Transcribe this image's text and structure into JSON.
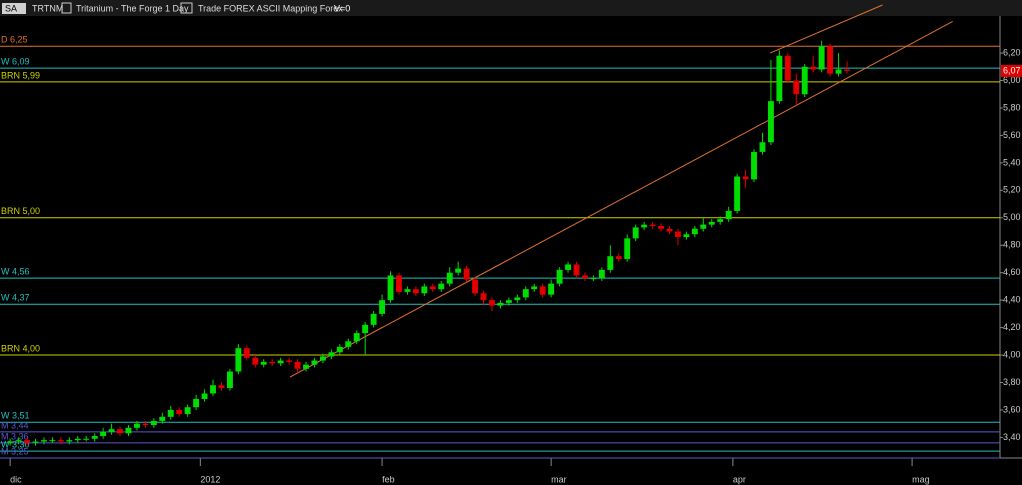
{
  "header": {
    "symbol_button": "SA",
    "symbol": "TRTNM",
    "description": "Tritanium - The Forge  1 Day",
    "source": "Trade FOREX ASCII Mapping Forex",
    "volume": "V=0"
  },
  "chart_data": {
    "type": "candlestick",
    "up_color": "#00dd00",
    "down_color": "#e00000",
    "open": [
      3.36,
      3.37,
      3.38,
      3.36,
      3.37,
      3.38,
      3.38,
      3.37,
      3.38,
      3.39,
      3.39,
      3.41,
      3.44,
      3.46,
      3.43,
      3.47,
      3.5,
      3.49,
      3.52,
      3.55,
      3.6,
      3.57,
      3.62,
      3.68,
      3.72,
      3.78,
      3.76,
      3.88,
      4.05,
      3.98,
      3.93,
      3.95,
      3.94,
      3.96,
      3.95,
      3.9,
      3.93,
      3.96,
      3.99,
      4.02,
      4.06,
      4.1,
      4.16,
      4.22,
      4.3,
      4.4,
      4.58,
      4.46,
      4.48,
      4.45,
      4.5,
      4.48,
      4.52,
      4.6,
      4.63,
      4.55,
      4.45,
      4.4,
      4.36,
      4.38,
      4.4,
      4.42,
      4.48,
      4.5,
      4.44,
      4.52,
      4.62,
      4.66,
      4.58,
      4.56,
      4.56,
      4.62,
      4.72,
      4.7,
      4.85,
      4.93,
      4.95,
      4.94,
      4.92,
      4.9,
      4.86,
      4.88,
      4.92,
      4.95,
      4.97,
      4.99,
      5.05,
      5.3,
      5.28,
      5.48,
      5.55,
      5.85,
      6.18,
      6.0,
      5.9,
      6.1,
      6.08,
      6.25,
      6.05,
      6.08
    ],
    "high": [
      3.39,
      3.4,
      3.4,
      3.39,
      3.4,
      3.4,
      3.4,
      3.4,
      3.41,
      3.41,
      3.43,
      3.47,
      3.5,
      3.48,
      3.49,
      3.52,
      3.52,
      3.54,
      3.58,
      3.63,
      3.62,
      3.64,
      3.71,
      3.75,
      3.82,
      3.8,
      3.9,
      4.08,
      4.07,
      4.0,
      3.97,
      3.97,
      3.98,
      3.98,
      3.97,
      3.95,
      3.98,
      4.01,
      4.04,
      4.08,
      4.12,
      4.18,
      4.24,
      4.32,
      4.44,
      4.61,
      4.6,
      4.5,
      4.5,
      4.52,
      4.52,
      4.54,
      4.64,
      4.68,
      4.65,
      4.57,
      4.47,
      4.42,
      4.4,
      4.42,
      4.44,
      4.5,
      4.52,
      4.52,
      4.55,
      4.64,
      4.68,
      4.68,
      4.6,
      4.58,
      4.64,
      4.8,
      4.74,
      4.88,
      4.95,
      4.97,
      4.97,
      4.96,
      4.94,
      4.92,
      4.9,
      4.94,
      5.0,
      4.99,
      5.01,
      5.08,
      5.32,
      5.35,
      5.5,
      5.62,
      6.15,
      6.22,
      6.2,
      6.05,
      6.12,
      6.18,
      6.29,
      6.27,
      6.2,
      6.14
    ],
    "low": [
      3.34,
      3.35,
      3.34,
      3.34,
      3.35,
      3.36,
      3.35,
      3.35,
      3.36,
      3.37,
      3.37,
      3.39,
      3.42,
      3.41,
      3.41,
      3.45,
      3.47,
      3.47,
      3.5,
      3.53,
      3.55,
      3.55,
      3.6,
      3.66,
      3.7,
      3.74,
      3.74,
      3.86,
      3.96,
      3.91,
      3.91,
      3.92,
      3.92,
      3.93,
      3.86,
      3.88,
      3.91,
      3.94,
      3.97,
      4.0,
      4.04,
      4.08,
      4.0,
      4.2,
      4.28,
      4.38,
      4.44,
      4.44,
      4.43,
      4.43,
      4.46,
      4.46,
      4.5,
      4.58,
      4.53,
      4.43,
      4.36,
      4.32,
      4.34,
      4.36,
      4.38,
      4.4,
      4.46,
      4.42,
      4.42,
      4.5,
      4.6,
      4.56,
      4.54,
      4.54,
      4.54,
      4.6,
      4.68,
      4.68,
      4.83,
      4.91,
      4.92,
      4.9,
      4.88,
      4.8,
      4.84,
      4.86,
      4.9,
      4.93,
      4.95,
      4.97,
      5.03,
      5.22,
      5.26,
      5.46,
      5.53,
      5.83,
      5.98,
      5.82,
      5.88,
      6.06,
      6.06,
      6.03,
      6.03,
      6.05
    ],
    "close": [
      3.37,
      3.38,
      3.36,
      3.37,
      3.38,
      3.38,
      3.37,
      3.38,
      3.39,
      3.39,
      3.41,
      3.44,
      3.46,
      3.43,
      3.47,
      3.5,
      3.49,
      3.52,
      3.55,
      3.6,
      3.57,
      3.62,
      3.68,
      3.72,
      3.78,
      3.76,
      3.88,
      4.05,
      3.98,
      3.93,
      3.95,
      3.94,
      3.96,
      3.95,
      3.9,
      3.93,
      3.96,
      3.99,
      4.02,
      4.06,
      4.1,
      4.16,
      4.22,
      4.3,
      4.4,
      4.58,
      4.46,
      4.48,
      4.45,
      4.5,
      4.48,
      4.52,
      4.6,
      4.63,
      4.55,
      4.45,
      4.4,
      4.36,
      4.38,
      4.4,
      4.42,
      4.48,
      4.5,
      4.44,
      4.52,
      4.62,
      4.66,
      4.58,
      4.56,
      4.56,
      4.62,
      4.72,
      4.7,
      4.85,
      4.93,
      4.95,
      4.94,
      4.92,
      4.9,
      4.86,
      4.88,
      4.92,
      4.95,
      4.97,
      4.99,
      5.05,
      5.3,
      5.28,
      5.48,
      5.55,
      5.85,
      6.18,
      6.0,
      5.9,
      6.1,
      6.08,
      6.25,
      6.05,
      6.08,
      6.07
    ],
    "xlim": [
      -1.2,
      117.1
    ],
    "xticks": [
      {
        "value": 0,
        "label": "dic"
      },
      {
        "value": 22.5,
        "label": "2012"
      },
      {
        "value": 44,
        "label": "feb"
      },
      {
        "value": 64,
        "label": "mar"
      },
      {
        "value": 85.5,
        "label": "apr"
      },
      {
        "value": 106.7,
        "label": "mag"
      }
    ],
    "ylim": [
      3.25,
      6.47
    ],
    "yticks": [
      {
        "value": 3.4,
        "label": "3,40"
      },
      {
        "value": 3.6,
        "label": "3,60"
      },
      {
        "value": 3.8,
        "label": "3,80"
      },
      {
        "value": 4.0,
        "label": "4,00"
      },
      {
        "value": 4.2,
        "label": "4,20"
      },
      {
        "value": 4.4,
        "label": "4,40"
      },
      {
        "value": 4.6,
        "label": "4,60"
      },
      {
        "value": 4.8,
        "label": "4,80"
      },
      {
        "value": 5.0,
        "label": "5,00"
      },
      {
        "value": 5.2,
        "label": "5,20"
      },
      {
        "value": 5.4,
        "label": "5,40"
      },
      {
        "value": 5.6,
        "label": "5,60"
      },
      {
        "value": 5.8,
        "label": "5,80"
      },
      {
        "value": 6.0,
        "label": "6,00"
      },
      {
        "value": 6.2,
        "label": "6,20"
      }
    ],
    "levels": [
      {
        "label": "D 6,25",
        "value": 6.25,
        "color": "#e07030"
      },
      {
        "label": "W 6,09",
        "value": 6.09,
        "color": "#20c0c0"
      },
      {
        "label": "BRN 5,99",
        "value": 5.99,
        "color": "#d0d000"
      },
      {
        "label": "BRN 5,00",
        "value": 5.0,
        "color": "#d0d000"
      },
      {
        "label": "W 4,56",
        "value": 4.56,
        "color": "#20c0c0"
      },
      {
        "label": "W 4,37",
        "value": 4.37,
        "color": "#20c0c0"
      },
      {
        "label": "BRN 4,00",
        "value": 4.0,
        "color": "#d0d000"
      },
      {
        "label": "W 3,51",
        "value": 3.51,
        "color": "#20c0c0"
      },
      {
        "label": "M 3,44",
        "value": 3.44,
        "color": "#5a5ad0"
      },
      {
        "label": "M 3,36",
        "value": 3.36,
        "color": "#5a5ad0"
      },
      {
        "label": "W 3,30",
        "value": 3.3,
        "color": "#20c0c0"
      },
      {
        "label": "M 3,25",
        "value": 3.25,
        "color": "#5a5ad0"
      }
    ],
    "trendlines": [
      {
        "x": [
          33.1,
          111.5
        ],
        "y": [
          3.84,
          6.43
        ],
        "color": "#e07030"
      },
      {
        "x": [
          89.9,
          103.2
        ],
        "y": [
          6.2,
          6.55
        ],
        "color": "#e07030"
      }
    ],
    "last_price": {
      "value": 6.07,
      "label": "6,07",
      "color": "#e00000"
    }
  }
}
